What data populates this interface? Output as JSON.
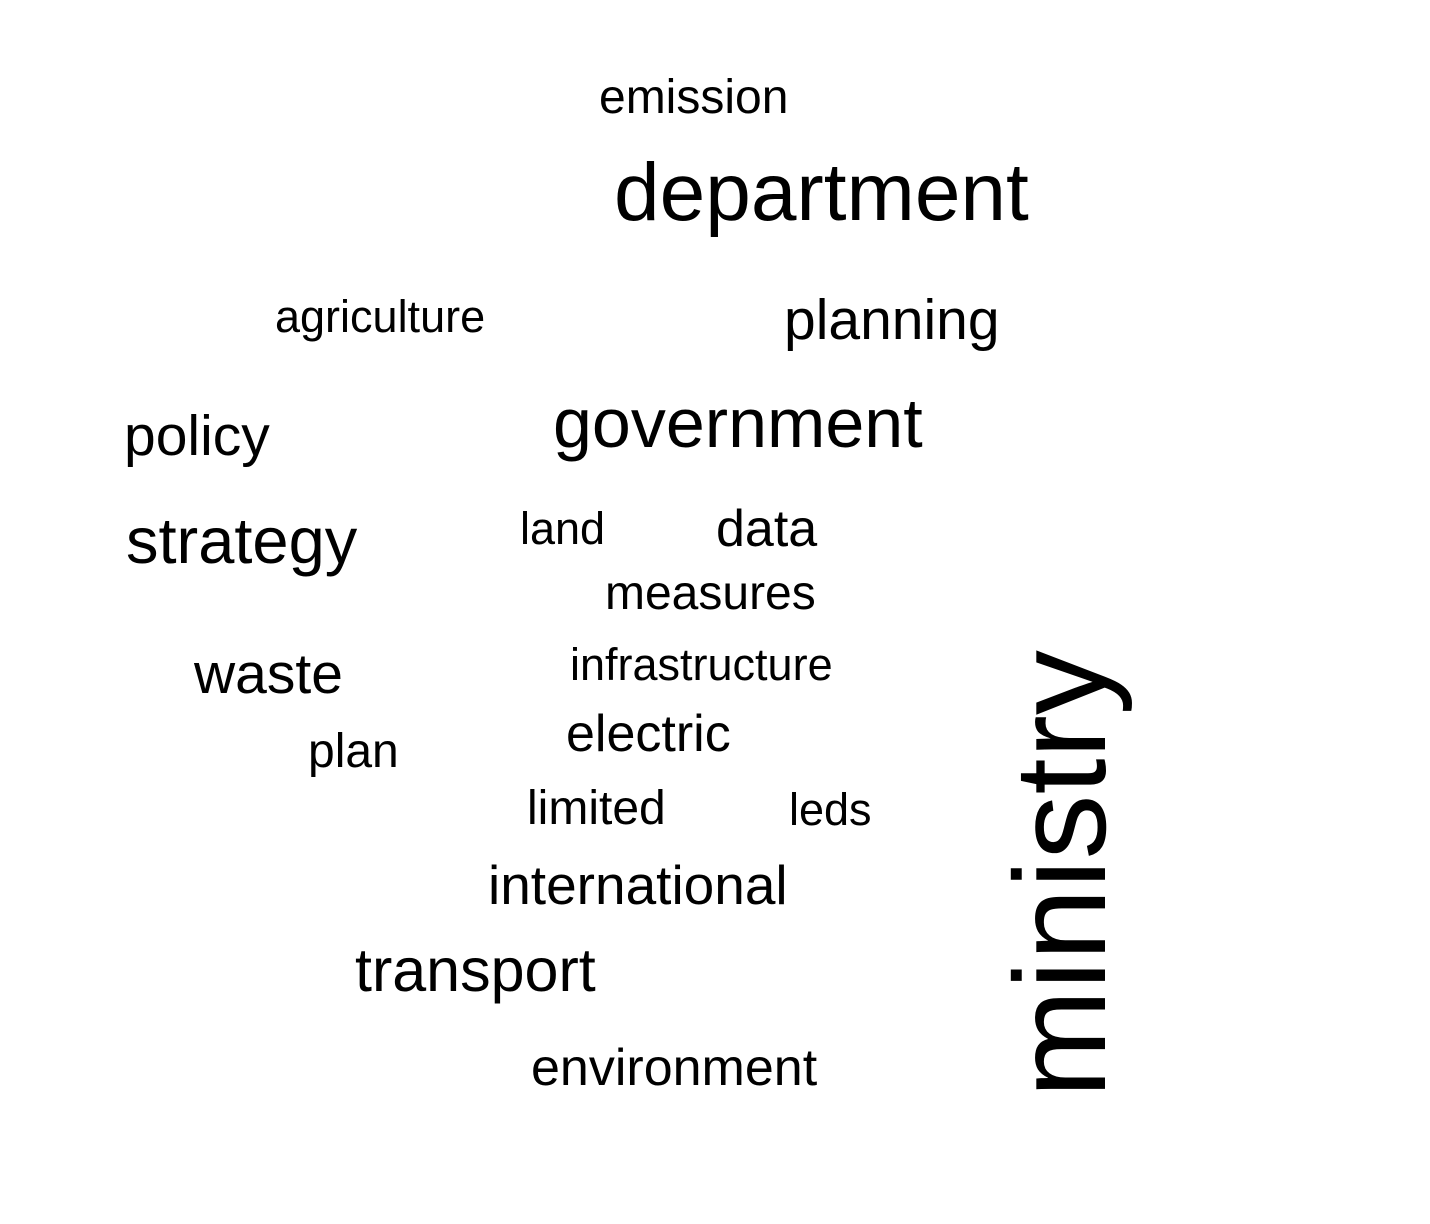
{
  "words": {
    "emission": "emission",
    "department": "department",
    "agriculture": "agriculture",
    "planning": "planning",
    "policy": "policy",
    "government": "government",
    "strategy": "strategy",
    "land": "land",
    "data": "data",
    "measures": "measures",
    "waste": "waste",
    "infrastructure": "infrastructure",
    "plan": "plan",
    "electric": "electric",
    "limited": "limited",
    "leds": "leds",
    "international": "international",
    "transport": "transport",
    "environment": "environment",
    "ministry": "ministry"
  },
  "colors": {
    "text": "#000000",
    "background": "#ffffff"
  }
}
